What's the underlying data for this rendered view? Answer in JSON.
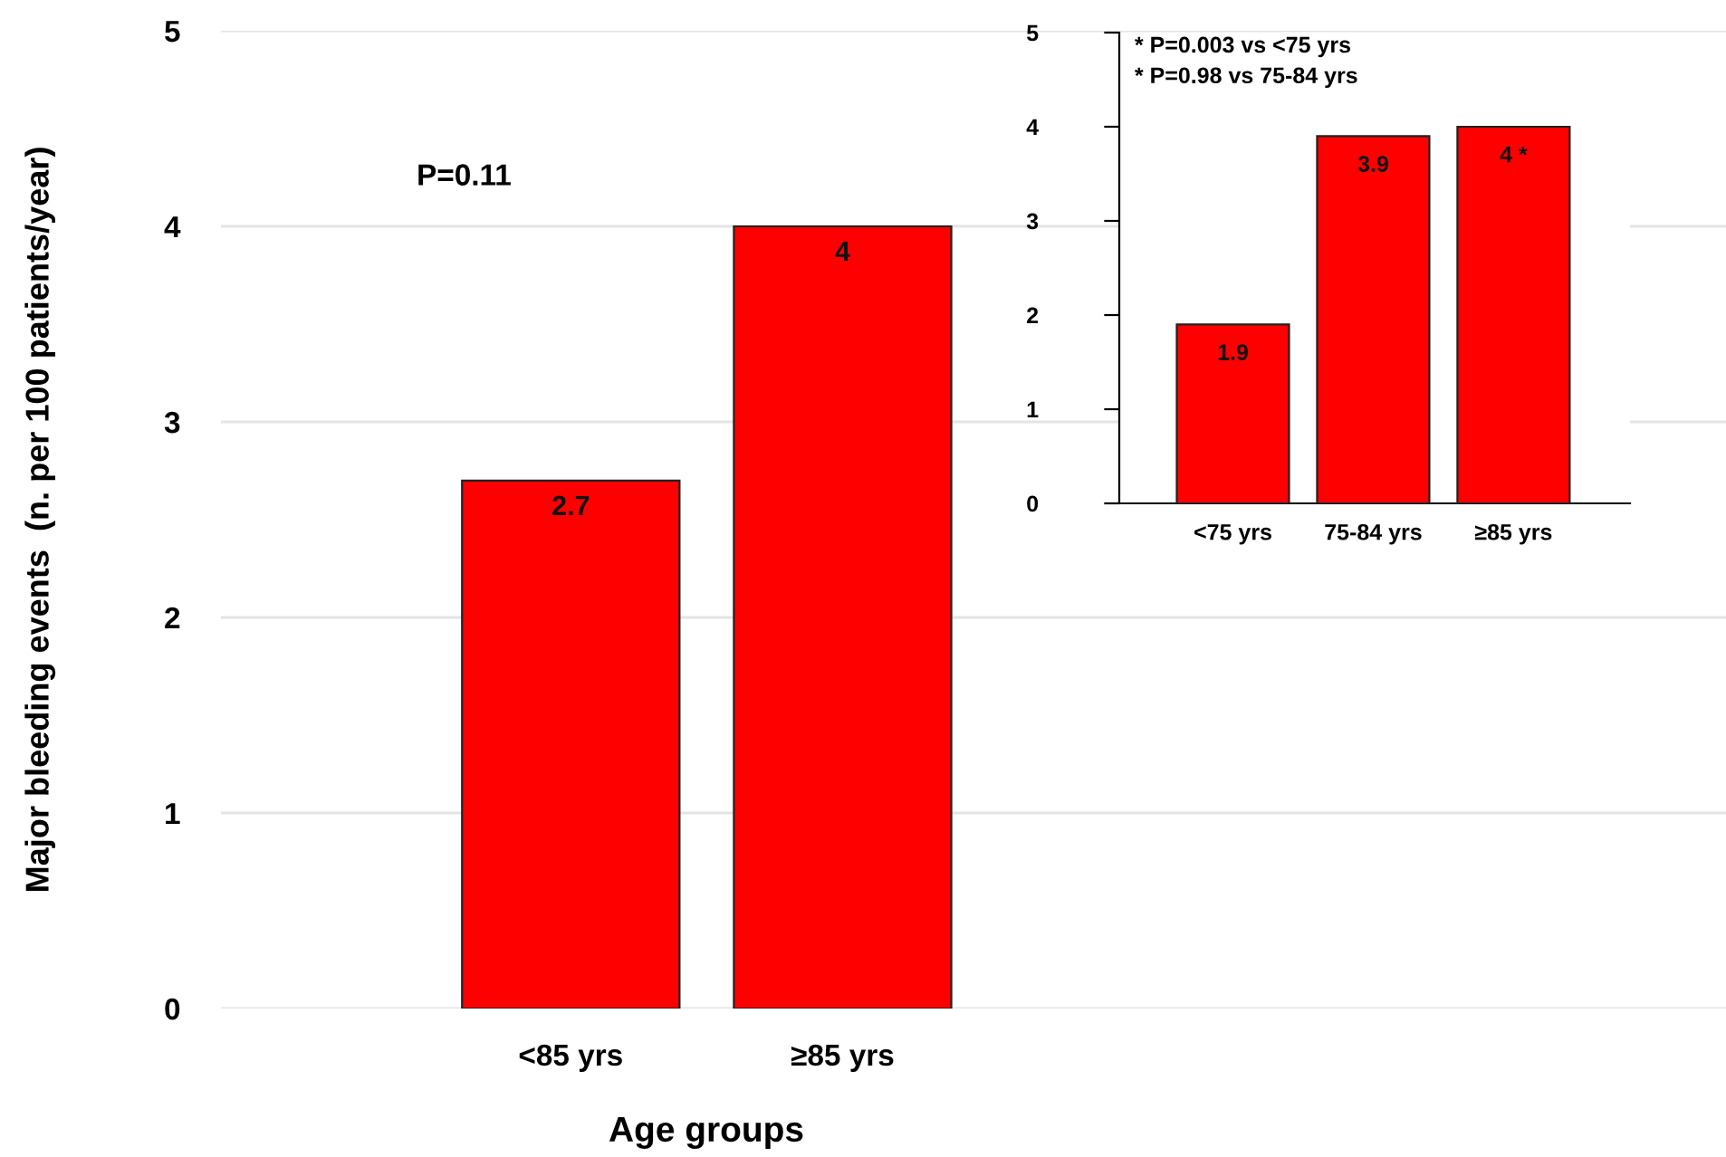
{
  "chart_data": [
    {
      "type": "bar",
      "ylabel": "Major bleeding events  (n. per 100 patients/year)",
      "xlabel": "Age groups",
      "categories": [
        "<85 yrs",
        "≥85 yrs"
      ],
      "values": [
        2.7,
        4
      ],
      "color": "#ff0000",
      "ylim": [
        0,
        5
      ],
      "yticks": [
        0,
        1,
        2,
        3,
        4,
        5
      ],
      "grid": "y",
      "data_labels": true,
      "annotations": [
        "P=0.11"
      ]
    },
    {
      "type": "bar",
      "categories": [
        "<75 yrs",
        "75-84 yrs",
        "≥85 yrs"
      ],
      "values": [
        1.9,
        3.9,
        4
      ],
      "value_labels": [
        "1.9",
        "3.9",
        "4 *"
      ],
      "color": "#ff0000",
      "ylim": [
        0,
        5
      ],
      "yticks": [
        0,
        1,
        2,
        3,
        4,
        5
      ],
      "annotations": [
        "* P=0.003 vs <75 yrs",
        "* P=0.98 vs 75-84 yrs"
      ]
    }
  ]
}
